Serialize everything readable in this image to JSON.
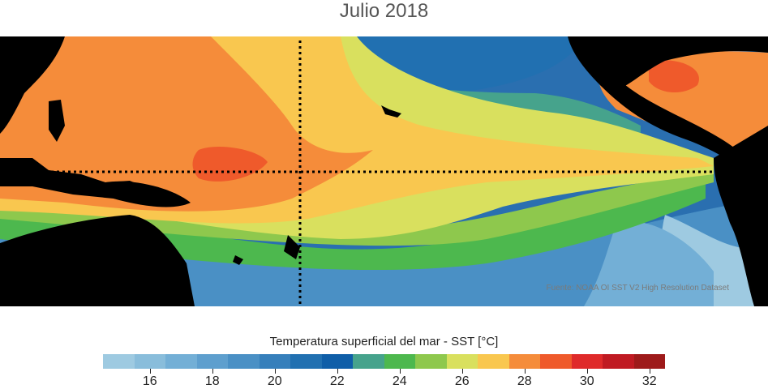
{
  "title": "Julio 2018",
  "credit": "Fuente: NOAA OI SST V2 High Resolution Dataset",
  "colorbar": {
    "title": "Temperatura superficial del mar - SST  [°C]",
    "min": 15,
    "max": 33,
    "step": 1,
    "colors": [
      "#9ecae1",
      "#89bddb",
      "#73afd6",
      "#5e9fce",
      "#4a90c5",
      "#367fbb",
      "#2170b1",
      "#0f5ea8",
      "#46a38c",
      "#4db84e",
      "#8ec84d",
      "#d9e05e",
      "#f9c74f",
      "#f58c3a",
      "#ef5a2b",
      "#df2a2a",
      "#c01a22",
      "#9e1a1a"
    ],
    "ticks": [
      16,
      18,
      20,
      22,
      24,
      26,
      28,
      30,
      32
    ]
  },
  "legend_labels": {
    "t16": "16",
    "t18": "18",
    "t20": "20",
    "t22": "22",
    "t24": "24",
    "t26": "26",
    "t28": "28",
    "t30": "30",
    "t32": "32"
  }
}
